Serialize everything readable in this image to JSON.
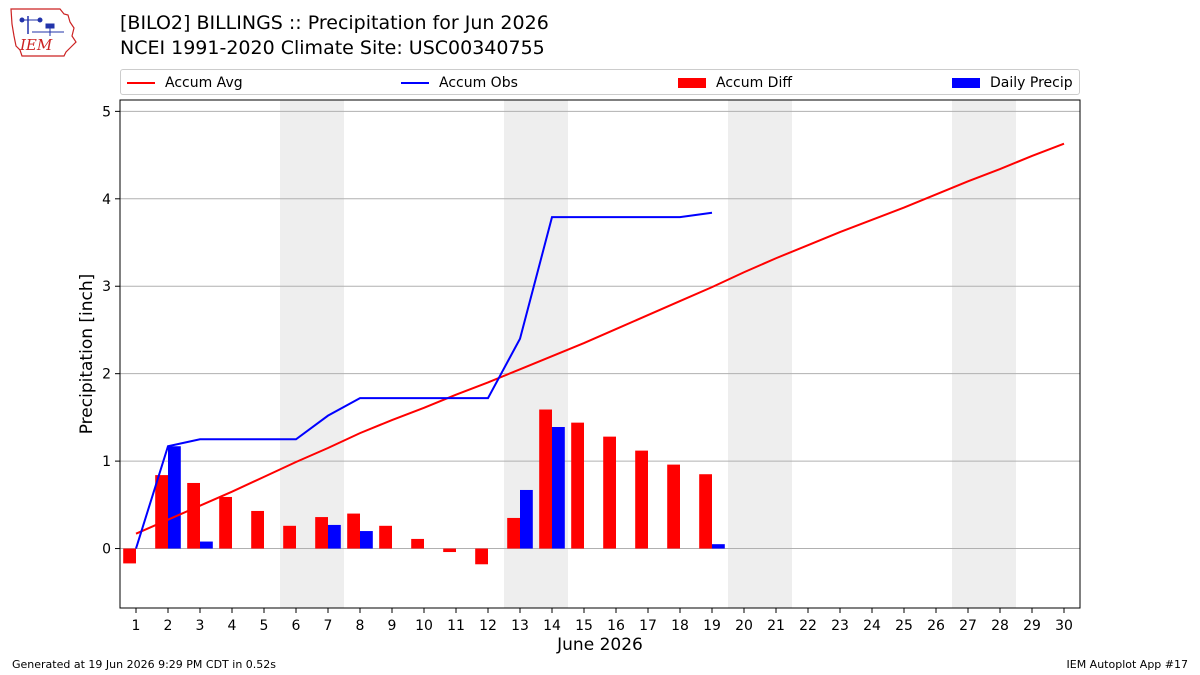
{
  "header": {
    "title_line1": "[BILO2] BILLINGS :: Precipitation for Jun 2026",
    "title_line2": "NCEI 1991-2020 Climate Site: USC00340755",
    "logo_text": "IEM"
  },
  "footer": {
    "generated": "Generated at 19 Jun 2026 9:29 PM CDT in 0.52s",
    "app": "IEM Autoplot App #17"
  },
  "colors": {
    "avg": "#ff0000",
    "obs": "#0000ff",
    "diff": "#ff0000",
    "daily": "#0000ff",
    "weekend": "#eeeeee",
    "grid": "#b0b0b0"
  },
  "chart_data": {
    "type": "bar",
    "xlabel": "June 2026",
    "ylabel": "Precipitation [inch]",
    "ylim": [
      -0.68,
      5.13
    ],
    "xlim": [
      0.5,
      30.5
    ],
    "yticks": [
      0,
      1,
      2,
      3,
      4,
      5
    ],
    "xticks": [
      1,
      2,
      3,
      4,
      5,
      6,
      7,
      8,
      9,
      10,
      11,
      12,
      13,
      14,
      15,
      16,
      17,
      18,
      19,
      20,
      21,
      22,
      23,
      24,
      25,
      26,
      27,
      28,
      29,
      30
    ],
    "grid": "horizontal",
    "legend": "top",
    "weekend_shading": [
      [
        6,
        7
      ],
      [
        13,
        14
      ],
      [
        20,
        21
      ],
      [
        27,
        28
      ]
    ],
    "days": [
      1,
      2,
      3,
      4,
      5,
      6,
      7,
      8,
      9,
      10,
      11,
      12,
      13,
      14,
      15,
      16,
      17,
      18,
      19,
      20,
      21,
      22,
      23,
      24,
      25,
      26,
      27,
      28,
      29,
      30
    ],
    "series": [
      {
        "name": "Accum Avg",
        "kind": "line",
        "values": [
          0.17,
          0.33,
          0.49,
          0.65,
          0.82,
          0.99,
          1.15,
          1.32,
          1.47,
          1.61,
          1.76,
          1.9,
          2.05,
          2.2,
          2.35,
          2.51,
          2.67,
          2.83,
          2.99,
          3.16,
          3.32,
          3.47,
          3.62,
          3.76,
          3.9,
          4.05,
          4.2,
          4.34,
          4.49,
          4.63
        ]
      },
      {
        "name": "Accum Obs",
        "kind": "line",
        "values": [
          0.0,
          1.17,
          1.25,
          1.25,
          1.25,
          1.25,
          1.52,
          1.72,
          1.72,
          1.72,
          1.72,
          1.72,
          2.4,
          3.79,
          3.79,
          3.79,
          3.79,
          3.79,
          3.84
        ]
      },
      {
        "name": "Accum Diff",
        "kind": "bar",
        "values": [
          -0.17,
          0.84,
          0.75,
          0.59,
          0.43,
          0.26,
          0.36,
          0.4,
          0.26,
          0.11,
          -0.04,
          -0.18,
          0.35,
          1.59,
          1.44,
          1.28,
          1.12,
          0.96,
          0.85
        ]
      },
      {
        "name": "Daily Precip",
        "kind": "bar",
        "values": [
          0.0,
          1.17,
          0.08,
          0.0,
          0.0,
          0.0,
          0.27,
          0.2,
          0.0,
          0.0,
          0.0,
          0.0,
          0.67,
          1.39,
          0.0,
          0.0,
          0.0,
          0.0,
          0.05
        ]
      }
    ]
  }
}
